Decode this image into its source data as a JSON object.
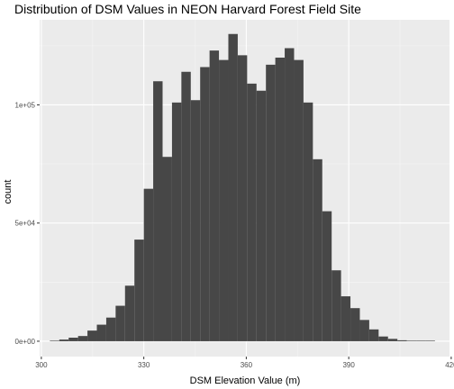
{
  "chart_data": {
    "type": "bar",
    "title": "Distribution of DSM Values in NEON Harvard Forest Field Site",
    "xlabel": "DSM Elevation Value (m)",
    "ylabel": "count",
    "xlim": [
      299.5,
      419.5
    ],
    "ylim": [
      -6500,
      136000
    ],
    "x_ticks": [
      300,
      330,
      360,
      390,
      420
    ],
    "x_tick_labels": [
      "300",
      "330",
      "360",
      "390",
      "420"
    ],
    "y_ticks": [
      0,
      50000,
      100000
    ],
    "y_tick_labels": [
      "0e+00",
      "5e+04",
      "1e+05"
    ],
    "bar_color": "#474747",
    "panel_color": "#ebebeb",
    "grid": true,
    "bin_width": 2.75,
    "bin_starts": [
      302.5,
      305.25,
      308.0,
      310.75,
      313.5,
      316.25,
      319.0,
      321.75,
      324.5,
      327.25,
      330.0,
      332.75,
      335.5,
      338.25,
      341.0,
      343.75,
      346.5,
      349.25,
      352.0,
      354.75,
      357.5,
      360.25,
      363.0,
      365.75,
      368.5,
      371.25,
      374.0,
      376.75,
      379.5,
      382.25,
      385.0,
      387.75,
      390.5,
      393.25,
      396.0,
      398.75,
      401.5,
      404.25,
      407.0,
      409.75,
      412.5
    ],
    "values": [
      200,
      700,
      1500,
      2200,
      4500,
      7000,
      10000,
      15000,
      23500,
      43000,
      64500,
      110000,
      78000,
      101000,
      114000,
      102000,
      116000,
      123000,
      119000,
      130000,
      121000,
      109000,
      106000,
      117000,
      120000,
      124000,
      119000,
      101000,
      77000,
      55000,
      30000,
      19000,
      14000,
      9000,
      5000,
      2000,
      1000,
      400,
      200,
      100,
      50
    ]
  }
}
